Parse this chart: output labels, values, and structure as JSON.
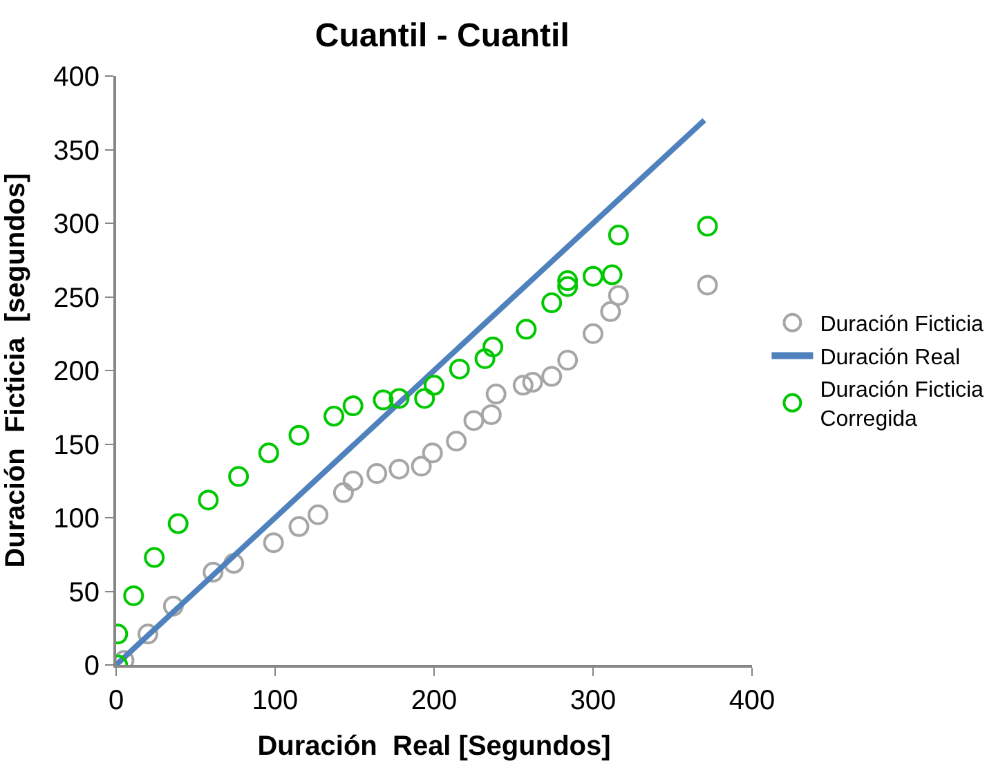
{
  "chart_data": {
    "type": "scatter",
    "title": "Cuantil - Cuantil",
    "xlabel": "Duración  Real [Segundos]",
    "ylabel": "Duración  Ficticia  [segundos]",
    "xlim": [
      0,
      400
    ],
    "ylim": [
      0,
      400
    ],
    "xticks": [
      0,
      100,
      200,
      300,
      400
    ],
    "yticks": [
      0,
      50,
      100,
      150,
      200,
      250,
      300,
      350,
      400
    ],
    "legend": "right",
    "marker": "circle",
    "series": [
      {
        "name": "Duración Ficticia",
        "color": "#a6a6a6",
        "x": [
          5,
          20,
          36,
          61,
          74,
          99,
          115,
          127,
          143,
          149,
          164,
          178,
          192,
          199,
          214,
          225,
          236,
          239,
          256,
          262,
          274,
          284,
          300,
          311,
          316,
          372
        ],
        "values": [
          3,
          21,
          40,
          63,
          69,
          83,
          94,
          102,
          117,
          125,
          130,
          133,
          135,
          144,
          152,
          166,
          170,
          184,
          190,
          192,
          196,
          207,
          225,
          240,
          251,
          258
        ]
      },
      {
        "name": "Duración Real",
        "color": "#4f81bd",
        "type": "line",
        "marker": "none",
        "x": [
          0,
          370
        ],
        "values": [
          0,
          370
        ]
      },
      {
        "name": "Duración Ficticia\nCorregida",
        "color": "#00c800",
        "x": [
          1,
          1,
          11,
          24,
          39,
          58,
          77,
          96,
          115,
          137,
          149,
          168,
          178,
          194,
          200,
          216,
          232,
          237,
          258,
          274,
          284,
          284,
          300,
          312,
          316,
          372
        ],
        "values": [
          0,
          21,
          47,
          73,
          96,
          112,
          128,
          144,
          156,
          169,
          176,
          180,
          181,
          181,
          190,
          201,
          208,
          216,
          228,
          246,
          257,
          261,
          264,
          265,
          292,
          298
        ]
      }
    ]
  }
}
